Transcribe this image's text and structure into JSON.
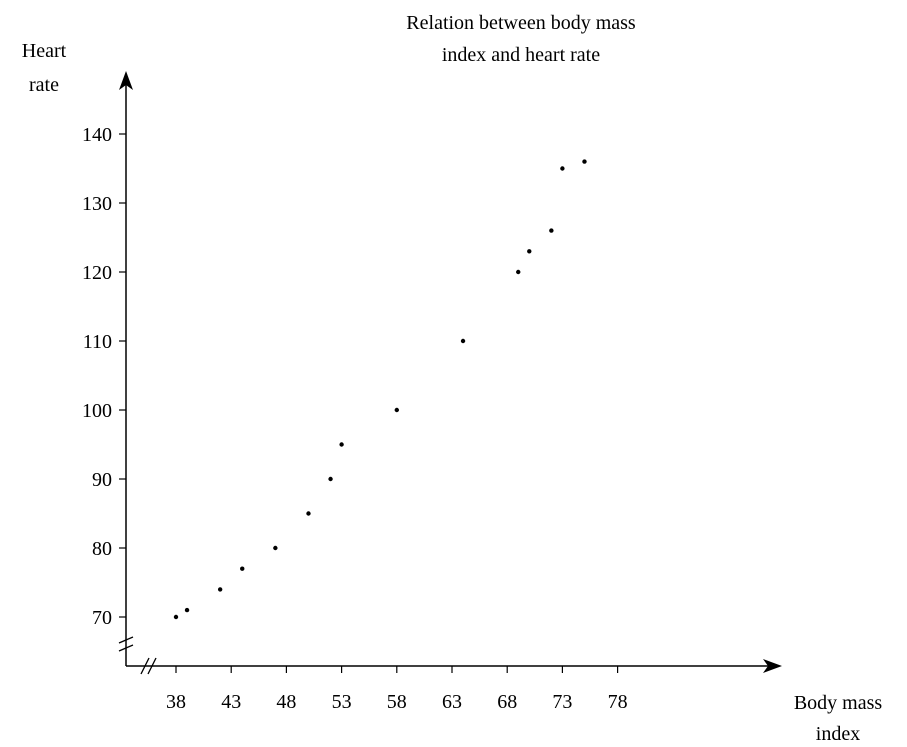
{
  "chart_data": {
    "type": "scatter",
    "title_lines": [
      "Relation between body mass",
      "index and heart rate"
    ],
    "ylabel_lines": [
      "Heart",
      "rate"
    ],
    "xlabel_lines": [
      "Body mass",
      "index"
    ],
    "x_ticks": [
      38,
      43,
      48,
      53,
      58,
      63,
      68,
      73,
      78
    ],
    "y_ticks": [
      70,
      80,
      90,
      100,
      110,
      120,
      130,
      140
    ],
    "x_tick_labels": [
      "38",
      "43",
      "48",
      "53",
      "58",
      "63",
      "68",
      "73",
      "78"
    ],
    "y_tick_labels": [
      "70",
      "80",
      "90",
      "100",
      "110",
      "120",
      "130",
      "140"
    ],
    "xlim": [
      38,
      78
    ],
    "ylim": [
      70,
      140
    ],
    "axis_breaks": true,
    "grid": false,
    "points": [
      {
        "x": 38,
        "y": 70
      },
      {
        "x": 39,
        "y": 71
      },
      {
        "x": 42,
        "y": 74
      },
      {
        "x": 44,
        "y": 77
      },
      {
        "x": 47,
        "y": 80
      },
      {
        "x": 50,
        "y": 85
      },
      {
        "x": 52,
        "y": 90
      },
      {
        "x": 53,
        "y": 95
      },
      {
        "x": 58,
        "y": 100
      },
      {
        "x": 64,
        "y": 110
      },
      {
        "x": 69,
        "y": 120
      },
      {
        "x": 70,
        "y": 123
      },
      {
        "x": 72,
        "y": 126
      },
      {
        "x": 73,
        "y": 135
      },
      {
        "x": 75,
        "y": 136
      }
    ],
    "point_color": "#000000",
    "axis_color": "#000000"
  }
}
